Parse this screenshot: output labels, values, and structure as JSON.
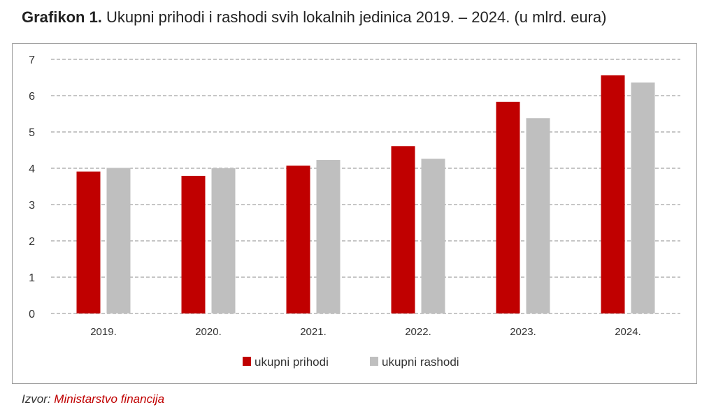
{
  "title": {
    "label": "Grafikon 1.",
    "text": "Ukupni prihodi i rashodi svih lokalnih jedinica 2019. – 2024. (u mlrd. eura)"
  },
  "source": {
    "label": "Izvor:",
    "text": "Ministarstvo financija"
  },
  "chart_data": {
    "type": "bar",
    "title": "Grafikon 1. Ukupni prihodi i rashodi svih lokalnih jedinica 2019. – 2024. (u mlrd. eura)",
    "categories": [
      "2019.",
      "2020.",
      "2021.",
      "2022.",
      "2023.",
      "2024."
    ],
    "series": [
      {
        "name": "ukupni prihodi",
        "color": "#c00000",
        "values": [
          3.91,
          3.79,
          4.07,
          4.61,
          5.83,
          6.56
        ]
      },
      {
        "name": "ukupni rashodi",
        "color": "#bfbfbf",
        "values": [
          4.01,
          4.0,
          4.23,
          4.26,
          5.38,
          6.36
        ]
      }
    ],
    "ylim": [
      0,
      7
    ],
    "yticks": [
      "0",
      "1",
      "2",
      "3",
      "4",
      "5",
      "6",
      "7"
    ],
    "grid": "horizontal dashed",
    "legend": "bottom"
  }
}
